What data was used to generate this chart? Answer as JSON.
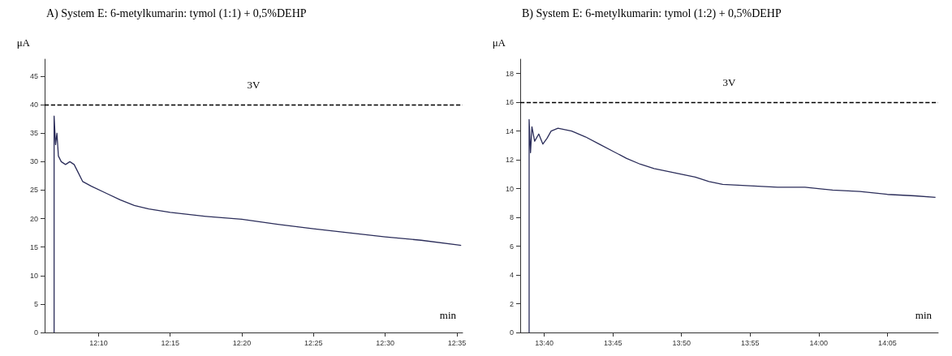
{
  "chart_data": [
    {
      "type": "line",
      "title": "A) System E: 6-metylkumarin: tymol (1:1) + 0,5%DEHP",
      "xlabel": "min",
      "ylabel": "μA",
      "marker": "none",
      "line_style": "solid",
      "grid": false,
      "xlim": [
        12.104,
        12.59
      ],
      "xticks": [
        {
          "value": 12.1667,
          "label": "12:10"
        },
        {
          "value": 12.25,
          "label": "12:15"
        },
        {
          "value": 12.3333,
          "label": "12:20"
        },
        {
          "value": 12.4167,
          "label": "12:25"
        },
        {
          "value": 12.5,
          "label": "12:30"
        },
        {
          "value": 12.5833,
          "label": "12:35"
        }
      ],
      "ylim": [
        0,
        48
      ],
      "yticks": [
        0,
        5,
        10,
        15,
        20,
        25,
        30,
        35,
        40,
        45
      ],
      "ref_lines": [
        {
          "axis": "y",
          "value": 40,
          "label": "3V",
          "color": "#000000",
          "line_style": "dashed"
        }
      ],
      "series": [
        {
          "color": "#2b2d5a",
          "x": [
            12.115,
            12.115,
            12.1167,
            12.1183,
            12.12,
            12.1233,
            12.1283,
            12.1333,
            12.1383,
            12.1433,
            12.1483,
            12.1583,
            12.175,
            12.1917,
            12.2083,
            12.225,
            12.25,
            12.2917,
            12.3333,
            12.375,
            12.4167,
            12.4583,
            12.5,
            12.5417,
            12.5833,
            12.5883
          ],
          "values": [
            0,
            38,
            33,
            35,
            31,
            30,
            29.5,
            30,
            29.5,
            28,
            26.5,
            25.7,
            24.5,
            23.3,
            22.3,
            21.7,
            21.1,
            20.4,
            19.9,
            19.0,
            18.2,
            17.5,
            16.8,
            16.2,
            15.4,
            15.3
          ]
        }
      ]
    },
    {
      "type": "line",
      "title": "B) System E: 6-metylkumarin: tymol (1:2) + 0,5%DEHP",
      "xlabel": "min",
      "ylabel": "μA",
      "marker": "none",
      "line_style": "solid",
      "grid": false,
      "xlim": [
        13.6375,
        14.145
      ],
      "xticks": [
        {
          "value": 13.6667,
          "label": "13:40"
        },
        {
          "value": 13.75,
          "label": "13:45"
        },
        {
          "value": 13.8333,
          "label": "13:50"
        },
        {
          "value": 13.9167,
          "label": "13:55"
        },
        {
          "value": 14,
          "label": "14:00"
        },
        {
          "value": 14.0833,
          "label": "14:05"
        }
      ],
      "ylim": [
        0,
        19
      ],
      "yticks": [
        0,
        2,
        4,
        6,
        8,
        10,
        12,
        14,
        16,
        18
      ],
      "ref_lines": [
        {
          "axis": "y",
          "value": 16,
          "label": "3V",
          "color": "#000000",
          "line_style": "dashed"
        }
      ],
      "series": [
        {
          "color": "#2b2d5a",
          "x": [
            13.6483,
            13.6483,
            13.65,
            13.6517,
            13.655,
            13.66,
            13.665,
            13.67,
            13.675,
            13.6833,
            13.7,
            13.7167,
            13.7333,
            13.75,
            13.7667,
            13.7833,
            13.8,
            13.8167,
            13.8333,
            13.85,
            13.8667,
            13.8833,
            13.9167,
            13.95,
            13.9833,
            14.0167,
            14.05,
            14.0833,
            14.1167,
            14.1417
          ],
          "values": [
            0,
            14.8,
            12.5,
            14.3,
            13.3,
            13.8,
            13.1,
            13.5,
            14.0,
            14.2,
            14.0,
            13.6,
            13.1,
            12.6,
            12.1,
            11.7,
            11.4,
            11.2,
            11.0,
            10.8,
            10.5,
            10.3,
            10.2,
            10.1,
            10.1,
            9.9,
            9.8,
            9.6,
            9.5,
            9.4
          ]
        }
      ]
    }
  ]
}
